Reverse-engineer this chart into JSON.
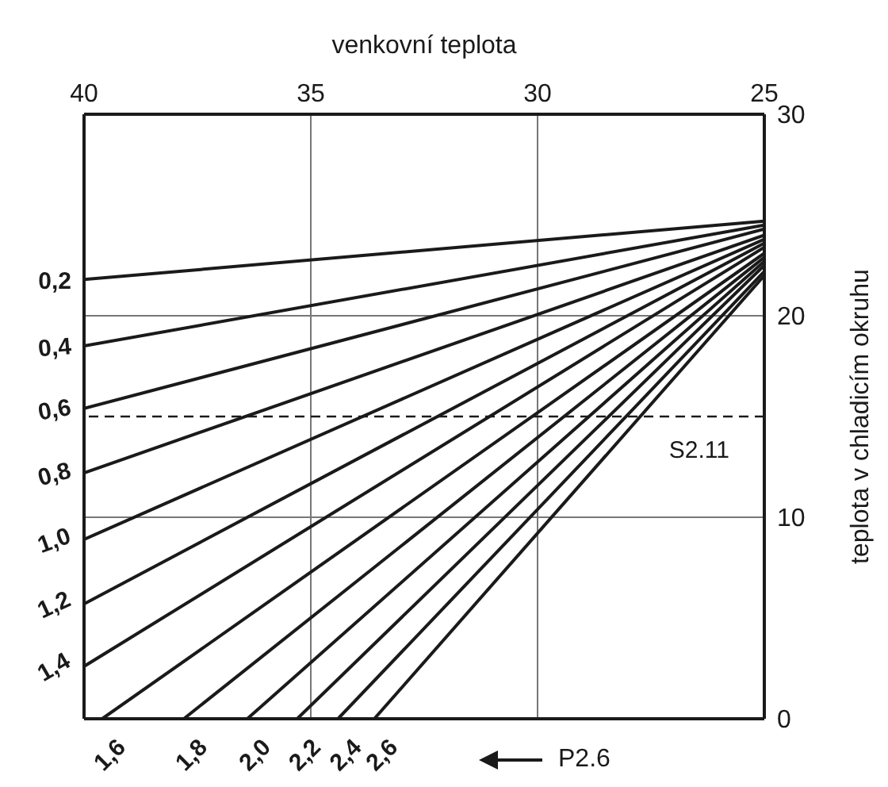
{
  "chart_data": {
    "type": "line",
    "xlabel": "venkovní teplota",
    "ylabel": "teplota v chladicím okruhu",
    "xlim": [
      40,
      25
    ],
    "xticks": [
      40,
      35,
      30,
      25
    ],
    "ylim": [
      0,
      30
    ],
    "yticks": [
      0,
      10,
      20,
      30
    ],
    "grid": true,
    "marker": "none",
    "line_style": "solid",
    "color": "#1a1a1a",
    "series": [
      {
        "name": "0,2",
        "x": [
          40,
          25
        ],
        "values": [
          21.8,
          24.7
        ]
      },
      {
        "name": "0,4",
        "x": [
          40,
          25
        ],
        "values": [
          18.5,
          24.5
        ]
      },
      {
        "name": "0,6",
        "x": [
          40,
          25
        ],
        "values": [
          15.4,
          24.3
        ]
      },
      {
        "name": "0,8",
        "x": [
          40,
          25
        ],
        "values": [
          12.2,
          24.0
        ]
      },
      {
        "name": "1,0",
        "x": [
          40,
          25
        ],
        "values": [
          8.9,
          23.8
        ]
      },
      {
        "name": "1,2",
        "x": [
          40,
          25
        ],
        "values": [
          5.7,
          23.6
        ]
      },
      {
        "name": "1,4",
        "x": [
          40,
          25
        ],
        "values": [
          2.6,
          23.4
        ]
      },
      {
        "name": "1,6",
        "x": [
          39.6,
          25
        ],
        "values": [
          0,
          23.1
        ]
      },
      {
        "name": "1,8",
        "x": [
          37.8,
          25
        ],
        "values": [
          0,
          22.9
        ]
      },
      {
        "name": "2,0",
        "x": [
          36.4,
          25
        ],
        "values": [
          0,
          22.7
        ]
      },
      {
        "name": "2,2",
        "x": [
          35.3,
          25
        ],
        "values": [
          0,
          22.5
        ]
      },
      {
        "name": "2,4",
        "x": [
          34.4,
          25
        ],
        "values": [
          0,
          22.2
        ]
      },
      {
        "name": "2,6",
        "x": [
          33.6,
          25
        ],
        "values": [
          0,
          22.0
        ]
      }
    ],
    "ref_lines": [
      {
        "axis": "y",
        "value": 15,
        "label": "S2.11",
        "line_style": "dashed",
        "color": "#1a1a1a"
      }
    ],
    "annotations": [
      "P2.6"
    ]
  }
}
